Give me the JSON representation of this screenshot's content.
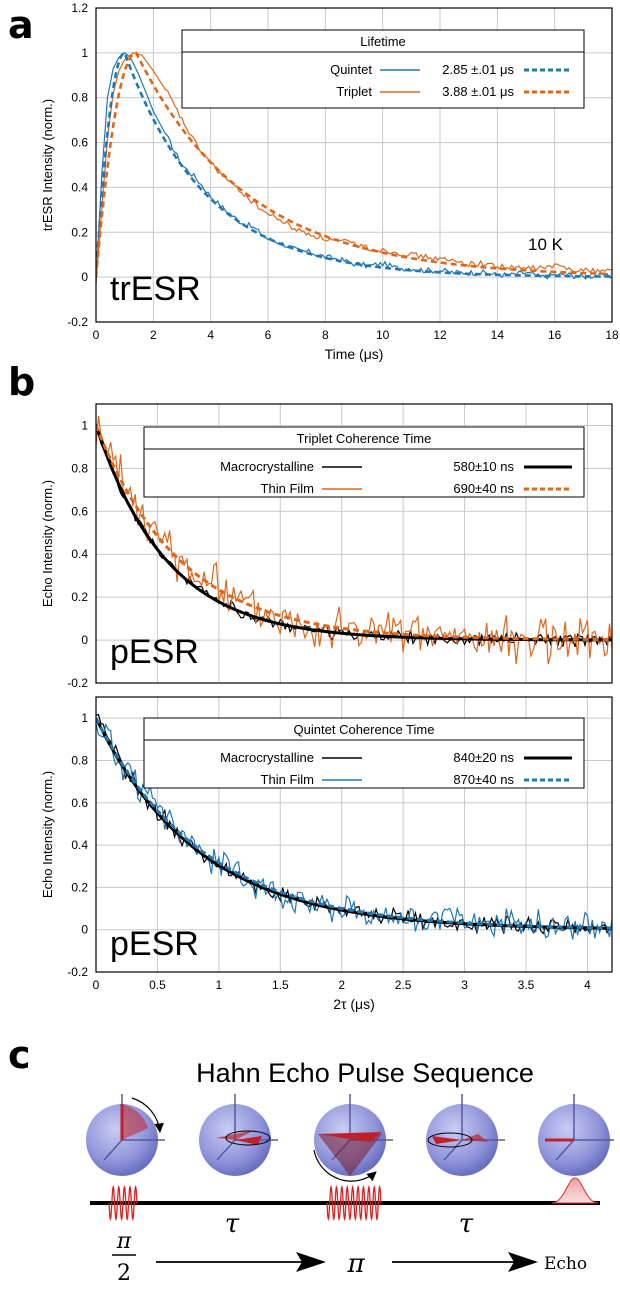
{
  "panel_letters": {
    "a": "a",
    "b": "b",
    "c": "c"
  },
  "colors": {
    "quintet": "#1f77b4",
    "triplet": "#e0661a",
    "black": "#000000",
    "grid": "#c8c8c8",
    "pulse": "#e02020",
    "sphere": "#8a8fd8"
  },
  "chart_data": [
    {
      "type": "line",
      "id": "trESR",
      "panel": "a",
      "xlabel": "Time (μs)",
      "ylabel": "trESR Intensity (norm.)",
      "xlim": [
        0,
        18
      ],
      "ylim": [
        -0.2,
        1.2
      ],
      "xticks": [
        0,
        2,
        4,
        6,
        8,
        10,
        12,
        14,
        16,
        18
      ],
      "yticks": [
        -0.2,
        0,
        0.2,
        0.4,
        0.6,
        0.8,
        1,
        1.2
      ],
      "ytick_labels": [
        "-0.2",
        "0",
        "0.2",
        "0.4",
        "0.6",
        "0.8",
        "1",
        "1.2"
      ],
      "grid": true,
      "annotations": [
        "10 K",
        "trESR"
      ],
      "legend": {
        "title": "Lifetime",
        "placement": "top-right",
        "entries": [
          {
            "name": "Quintet",
            "fit_label": "2.85 ±.01 μs"
          },
          {
            "name": "Triplet",
            "fit_label": "3.88 ±.01 μs"
          }
        ]
      },
      "series": [
        {
          "name": "Quintet",
          "kind": "data",
          "color": "#1f77b4",
          "dash": false,
          "x": [
            0,
            0.2,
            0.4,
            0.6,
            0.8,
            1.0,
            1.2,
            1.5,
            2,
            2.5,
            3,
            3.5,
            4,
            4.5,
            5,
            5.5,
            6,
            6.5,
            7,
            7.5,
            8,
            8.5,
            9,
            9.5,
            10,
            10.5,
            11,
            11.5,
            12,
            12.5,
            13,
            13.5,
            14,
            14.5,
            15,
            15.5,
            16,
            16.5,
            17,
            17.5,
            18
          ],
          "y": [
            -0.03,
            0.45,
            0.8,
            0.93,
            0.98,
            1.0,
            0.98,
            0.9,
            0.74,
            0.62,
            0.5,
            0.44,
            0.36,
            0.3,
            0.25,
            0.22,
            0.17,
            0.15,
            0.12,
            0.11,
            0.09,
            0.08,
            0.06,
            0.05,
            0.06,
            0.04,
            0.04,
            0.03,
            0.03,
            0.02,
            0.02,
            0.02,
            0.01,
            0.01,
            0.02,
            0.0,
            0.01,
            0.01,
            0.0,
            0.01,
            0.0
          ]
        },
        {
          "name": "Triplet",
          "kind": "data",
          "color": "#e0661a",
          "dash": false,
          "x": [
            0,
            0.2,
            0.4,
            0.6,
            0.8,
            1.0,
            1.3,
            1.6,
            2,
            2.5,
            3,
            3.5,
            4,
            4.5,
            5,
            5.5,
            6,
            6.5,
            7,
            7.5,
            8,
            8.5,
            9,
            9.5,
            10,
            10.5,
            11,
            11.5,
            12,
            12.5,
            13,
            13.5,
            14,
            14.5,
            15,
            15.5,
            16,
            16.5,
            17,
            17.5,
            18
          ],
          "y": [
            -0.02,
            0.3,
            0.62,
            0.82,
            0.92,
            0.97,
            1.0,
            0.99,
            0.92,
            0.82,
            0.7,
            0.59,
            0.51,
            0.44,
            0.39,
            0.33,
            0.28,
            0.25,
            0.21,
            0.19,
            0.17,
            0.16,
            0.15,
            0.13,
            0.12,
            0.11,
            0.1,
            0.09,
            0.08,
            0.07,
            0.06,
            0.06,
            0.05,
            0.04,
            0.04,
            0.04,
            0.05,
            0.04,
            0.03,
            0.03,
            0.03
          ]
        },
        {
          "name": "Quintet fit",
          "kind": "fit",
          "color": "#1f77b4",
          "dash": true,
          "tau": 2.85,
          "peak_x": 1.0
        },
        {
          "name": "Triplet fit",
          "kind": "fit",
          "color": "#e0661a",
          "dash": true,
          "tau": 3.88,
          "peak_x": 1.4
        }
      ]
    },
    {
      "type": "line",
      "id": "pESR-triplet",
      "panel": "b-top",
      "xlabel": "",
      "ylabel": "Echo Intensity (norm.)",
      "xlim": [
        0,
        4.2
      ],
      "ylim": [
        -0.2,
        1.1
      ],
      "xticks": [
        0,
        0.5,
        1,
        1.5,
        2,
        2.5,
        3,
        3.5,
        4
      ],
      "yticks": [
        -0.2,
        0,
        0.2,
        0.4,
        0.6,
        0.8,
        1
      ],
      "ytick_labels": [
        "-0.2",
        "0",
        "0.2",
        "0.4",
        "0.6",
        "0.8",
        "1"
      ],
      "grid": true,
      "annotations": [
        "pESR"
      ],
      "legend": {
        "title": "Triplet Coherence Time",
        "placement": "top-right",
        "entries": [
          {
            "name": "Macrocrystalline",
            "fit_label": "580±10 ns"
          },
          {
            "name": "Thin Film",
            "fit_label": "690±40 ns"
          }
        ]
      },
      "series": [
        {
          "name": "Macrocrystalline",
          "kind": "noisy",
          "color": "#000000",
          "tau": 0.58,
          "noise": 0.025,
          "seed": 11
        },
        {
          "name": "Thin Film",
          "kind": "noisy",
          "color": "#e0661a",
          "tau": 0.69,
          "noise": 0.09,
          "seed": 23
        },
        {
          "name": "Macrocrystalline fit",
          "kind": "exp",
          "color": "#000000",
          "dash": false,
          "tau": 0.58
        },
        {
          "name": "Thin Film fit",
          "kind": "exp",
          "color": "#e0661a",
          "dash": true,
          "tau": 0.69
        }
      ]
    },
    {
      "type": "line",
      "id": "pESR-quintet",
      "panel": "b-bottom",
      "xlabel": "2τ (μs)",
      "ylabel": "Echo Intensity (norm.)",
      "xlim": [
        0,
        4.2
      ],
      "ylim": [
        -0.2,
        1.1
      ],
      "xticks": [
        0,
        0.5,
        1,
        1.5,
        2,
        2.5,
        3,
        3.5,
        4
      ],
      "xtick_labels": [
        "0",
        "0.5",
        "1",
        "1.5",
        "2",
        "2.5",
        "3",
        "3.5",
        "4"
      ],
      "yticks": [
        -0.2,
        0,
        0.2,
        0.4,
        0.6,
        0.8,
        1
      ],
      "ytick_labels": [
        "-0.2",
        "0",
        "0.2",
        "0.4",
        "0.6",
        "0.8",
        "1"
      ],
      "grid": true,
      "annotations": [
        "pESR"
      ],
      "legend": {
        "title": "Quintet Coherence Time",
        "placement": "top-right",
        "entries": [
          {
            "name": "Macrocrystalline",
            "fit_label": "840±20 ns"
          },
          {
            "name": "Thin Film",
            "fit_label": "870±40 ns"
          }
        ]
      },
      "series": [
        {
          "name": "Macrocrystalline",
          "kind": "noisy",
          "color": "#000000",
          "tau": 0.84,
          "noise": 0.035,
          "seed": 37
        },
        {
          "name": "Thin Film",
          "kind": "noisy",
          "color": "#1f77b4",
          "tau": 0.87,
          "noise": 0.06,
          "seed": 51
        },
        {
          "name": "Macrocrystalline fit",
          "kind": "exp",
          "color": "#000000",
          "dash": false,
          "tau": 0.84
        },
        {
          "name": "Thin Film fit",
          "kind": "exp",
          "color": "#1f77b4",
          "dash": true,
          "tau": 0.87
        }
      ]
    }
  ],
  "hahn": {
    "title": "Hahn Echo Pulse Sequence",
    "tau_label": "τ",
    "pulse1_num": "π",
    "pulse1_den": "2",
    "pulse2": "π",
    "echo": "Echo"
  }
}
